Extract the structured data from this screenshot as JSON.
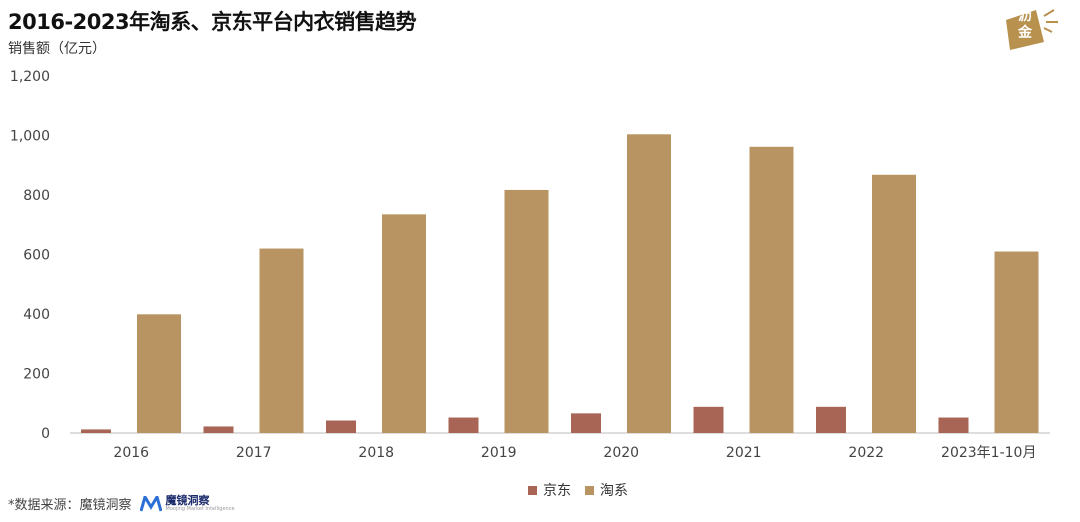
{
  "header": {
    "title": "2016-2023年淘系、京东平台内衣销售趋势",
    "unit": "销售额（亿元）"
  },
  "logo": {
    "text_line1": "沥",
    "text_line2": "金",
    "color": "#b8914f"
  },
  "footer": {
    "source": "*数据来源：魔镜洞察",
    "brand_name": "魔镜洞察",
    "brand_sub": "Moojing Market Intelligence"
  },
  "chart_data": {
    "type": "bar",
    "title": "2016-2023年淘系、京东平台内衣销售趋势",
    "ylabel": "销售额（亿元）",
    "xlabel": "",
    "categories": [
      "2016",
      "2017",
      "2018",
      "2019",
      "2020",
      "2021",
      "2022",
      "2023年1-10月"
    ],
    "ylim": [
      0,
      1200
    ],
    "yticks": [
      "0",
      "200",
      "400",
      "600",
      "800",
      "1,000",
      "1,200"
    ],
    "ytick_values": [
      0,
      200,
      400,
      600,
      800,
      1000,
      1200
    ],
    "grid": false,
    "legend_position": "bottom",
    "series": [
      {
        "name": "京东",
        "color": "#a86556",
        "values": [
          12,
          22,
          42,
          52,
          66,
          88,
          88,
          52
        ]
      },
      {
        "name": "淘系",
        "color": "#b89462",
        "values": [
          399,
          620,
          735,
          817,
          1004,
          962,
          868,
          610
        ]
      }
    ]
  }
}
